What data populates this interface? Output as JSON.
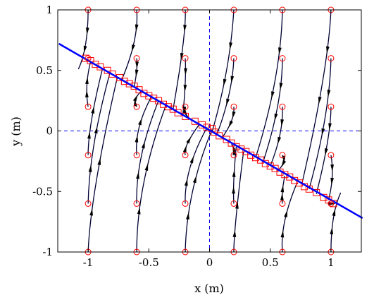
{
  "chart_data": {
    "type": "line",
    "title": "",
    "xlabel": "x (m)",
    "ylabel": "y (m)",
    "xlim": [
      -1.25,
      1.25
    ],
    "ylim": [
      -1,
      1
    ],
    "grid": false,
    "xticks": [
      -1,
      -0.5,
      0,
      0.5,
      1
    ],
    "yticks": [
      -1,
      -0.5,
      0,
      0.5,
      1
    ],
    "xtick_labels": [
      "-1",
      "-0.5",
      "0",
      "0.5",
      "1"
    ],
    "ytick_labels": [
      "-1",
      "-0.5",
      "0",
      "0.5",
      "1"
    ],
    "reference_lines": {
      "x": 0,
      "y": 0,
      "color": "#0000ee",
      "style": "dashed"
    },
    "target_line": {
      "color": "#0000ff",
      "points": [
        [
          -1.24,
          0.72
        ],
        [
          1.26,
          -0.72
        ]
      ]
    },
    "start_points": {
      "marker": "circle",
      "color": "#ff0000",
      "x": [
        -1,
        -0.6,
        -0.2,
        0.2,
        0.6,
        1
      ],
      "y": [
        -1,
        -0.6,
        -0.2,
        0.2,
        0.6,
        1
      ]
    },
    "end_points": {
      "marker": "square",
      "color": "#ff0000",
      "points": [
        [
          -1.02,
          0.6
        ],
        [
          -0.98,
          0.58
        ],
        [
          -0.94,
          0.55
        ],
        [
          -0.9,
          0.53
        ],
        [
          -0.84,
          0.5
        ],
        [
          -0.8,
          0.47
        ],
        [
          -0.74,
          0.44
        ],
        [
          -0.7,
          0.41
        ],
        [
          -0.66,
          0.39
        ],
        [
          -0.62,
          0.37
        ],
        [
          -0.58,
          0.34
        ],
        [
          -0.54,
          0.31
        ],
        [
          -0.5,
          0.29
        ],
        [
          -0.46,
          0.27
        ],
        [
          -0.42,
          0.25
        ],
        [
          -0.38,
          0.22
        ],
        [
          -0.34,
          0.2
        ],
        [
          -0.3,
          0.18
        ],
        [
          -0.26,
          0.15
        ],
        [
          -0.2,
          0.12
        ],
        [
          -0.12,
          0.08
        ],
        [
          -0.06,
          0.05
        ],
        [
          -0.02,
          0.03
        ],
        [
          0.02,
          0.02
        ],
        [
          0.04,
          -0.01
        ],
        [
          0.08,
          -0.04
        ],
        [
          0.14,
          -0.07
        ],
        [
          0.18,
          -0.1
        ],
        [
          0.22,
          -0.13
        ],
        [
          0.26,
          -0.15
        ],
        [
          0.3,
          -0.17
        ],
        [
          0.34,
          -0.2
        ],
        [
          0.38,
          -0.22
        ],
        [
          0.42,
          -0.24
        ],
        [
          0.46,
          -0.27
        ],
        [
          0.5,
          -0.29
        ],
        [
          0.54,
          -0.31
        ],
        [
          0.58,
          -0.34
        ],
        [
          0.62,
          -0.36
        ],
        [
          0.66,
          -0.38
        ],
        [
          0.7,
          -0.41
        ],
        [
          0.74,
          -0.43
        ],
        [
          0.78,
          -0.46
        ],
        [
          0.82,
          -0.48
        ],
        [
          0.88,
          -0.51
        ],
        [
          0.94,
          -0.55
        ],
        [
          0.98,
          -0.57
        ],
        [
          1.02,
          -0.6
        ]
      ]
    },
    "trajectories": {
      "color": "#000033",
      "arrow_color": "#000000",
      "paths": [
        {
          "start": [
            -1,
            1
          ],
          "end": [
            -1.08,
            0.51
          ],
          "mid": [
            -1.02,
            0.72
          ]
        },
        {
          "start": [
            -1,
            0.6
          ],
          "end": [
            -1.0,
            0.6
          ],
          "mid": [
            -1.0,
            0.6
          ]
        },
        {
          "start": [
            -1,
            0.2
          ],
          "end": [
            -0.98,
            0.57
          ],
          "mid": [
            -1.01,
            0.38
          ]
        },
        {
          "start": [
            -1,
            -0.2
          ],
          "end": [
            -0.88,
            0.52
          ],
          "mid": [
            -0.97,
            0.1
          ]
        },
        {
          "start": [
            -1,
            -0.6
          ],
          "end": [
            -0.82,
            0.48
          ],
          "mid": [
            -0.95,
            -0.1
          ]
        },
        {
          "start": [
            -1,
            -1
          ],
          "end": [
            -0.76,
            0.44
          ],
          "mid": [
            -0.93,
            -0.4
          ]
        },
        {
          "start": [
            -0.6,
            1
          ],
          "end": [
            -0.72,
            0.43
          ],
          "mid": [
            -0.62,
            0.74
          ]
        },
        {
          "start": [
            -0.6,
            0.6
          ],
          "end": [
            -0.62,
            0.37
          ],
          "mid": [
            -0.6,
            0.5
          ]
        },
        {
          "start": [
            -0.6,
            0.2
          ],
          "end": [
            -0.56,
            0.33
          ],
          "mid": [
            -0.61,
            0.26
          ]
        },
        {
          "start": [
            -0.6,
            -0.2
          ],
          "end": [
            -0.48,
            0.28
          ],
          "mid": [
            -0.58,
            0.03
          ]
        },
        {
          "start": [
            -0.6,
            -0.6
          ],
          "end": [
            -0.42,
            0.25
          ],
          "mid": [
            -0.56,
            -0.2
          ]
        },
        {
          "start": [
            -0.6,
            -1
          ],
          "end": [
            -0.36,
            0.21
          ],
          "mid": [
            -0.54,
            -0.42
          ]
        },
        {
          "start": [
            -0.2,
            1
          ],
          "end": [
            -0.3,
            0.18
          ],
          "mid": [
            -0.22,
            0.7
          ]
        },
        {
          "start": [
            -0.2,
            0.6
          ],
          "end": [
            -0.22,
            0.13
          ],
          "mid": [
            -0.2,
            0.4
          ]
        },
        {
          "start": [
            -0.2,
            0.2
          ],
          "end": [
            -0.16,
            0.1
          ],
          "mid": [
            -0.2,
            0.15
          ]
        },
        {
          "start": [
            -0.2,
            -0.2
          ],
          "end": [
            -0.08,
            0.06
          ],
          "mid": [
            -0.18,
            -0.1
          ]
        },
        {
          "start": [
            -0.2,
            -0.6
          ],
          "end": [
            -0.02,
            0.03
          ],
          "mid": [
            -0.16,
            -0.3
          ]
        },
        {
          "start": [
            -0.2,
            -1
          ],
          "end": [
            0.02,
            0.01
          ],
          "mid": [
            -0.14,
            -0.5
          ]
        },
        {
          "start": [
            0.2,
            1
          ],
          "end": [
            0.02,
            -0.01
          ],
          "mid": [
            0.14,
            0.5
          ]
        },
        {
          "start": [
            0.2,
            0.6
          ],
          "end": [
            0.06,
            -0.03
          ],
          "mid": [
            0.16,
            0.3
          ]
        },
        {
          "start": [
            0.2,
            0.2
          ],
          "end": [
            0.1,
            -0.06
          ],
          "mid": [
            0.18,
            0.08
          ]
        },
        {
          "start": [
            0.2,
            -0.2
          ],
          "end": [
            0.18,
            -0.11
          ],
          "mid": [
            0.2,
            -0.15
          ]
        },
        {
          "start": [
            0.2,
            -0.6
          ],
          "end": [
            0.22,
            -0.13
          ],
          "mid": [
            0.2,
            -0.4
          ]
        },
        {
          "start": [
            0.2,
            -1
          ],
          "end": [
            0.28,
            -0.17
          ],
          "mid": [
            0.22,
            -0.7
          ]
        },
        {
          "start": [
            0.6,
            1
          ],
          "end": [
            0.38,
            -0.22
          ],
          "mid": [
            0.54,
            0.42
          ]
        },
        {
          "start": [
            0.6,
            0.6
          ],
          "end": [
            0.44,
            -0.26
          ],
          "mid": [
            0.56,
            0.2
          ]
        },
        {
          "start": [
            0.6,
            0.2
          ],
          "end": [
            0.5,
            -0.29
          ],
          "mid": [
            0.58,
            -0.03
          ]
        },
        {
          "start": [
            0.6,
            -0.2
          ],
          "end": [
            0.56,
            -0.33
          ],
          "mid": [
            0.61,
            -0.26
          ]
        },
        {
          "start": [
            0.6,
            -0.6
          ],
          "end": [
            0.62,
            -0.37
          ],
          "mid": [
            0.6,
            -0.5
          ]
        },
        {
          "start": [
            0.6,
            -1
          ],
          "end": [
            0.72,
            -0.43
          ],
          "mid": [
            0.62,
            -0.74
          ]
        },
        {
          "start": [
            1,
            1
          ],
          "end": [
            0.76,
            -0.44
          ],
          "mid": [
            0.93,
            0.4
          ]
        },
        {
          "start": [
            1,
            0.6
          ],
          "end": [
            0.82,
            -0.48
          ],
          "mid": [
            0.95,
            0.1
          ]
        },
        {
          "start": [
            1,
            0.2
          ],
          "end": [
            0.88,
            -0.52
          ],
          "mid": [
            0.97,
            -0.1
          ]
        },
        {
          "start": [
            1,
            -0.2
          ],
          "end": [
            0.98,
            -0.57
          ],
          "mid": [
            1.01,
            -0.38
          ]
        },
        {
          "start": [
            1,
            -0.6
          ],
          "end": [
            1.02,
            -0.6
          ],
          "mid": [
            1.01,
            -0.6
          ]
        },
        {
          "start": [
            1,
            -1
          ],
          "end": [
            1.08,
            -0.51
          ],
          "mid": [
            1.02,
            -0.72
          ]
        }
      ]
    }
  }
}
